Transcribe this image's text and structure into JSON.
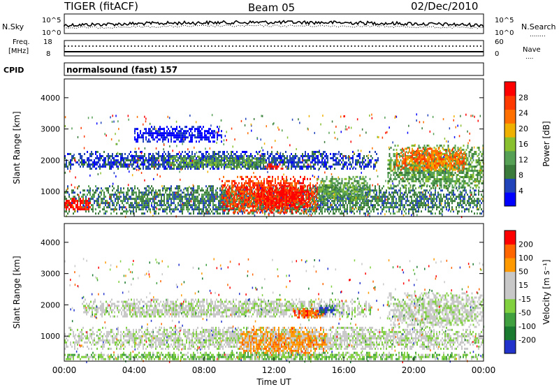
{
  "header": {
    "station": "TIGER (fitACF)",
    "beam": "Beam 05",
    "date": "02/Dec/2010"
  },
  "strips": {
    "nsky_label": "N.Sky",
    "nsearch_label": "N.Search",
    "freq_label": "Freq.",
    "freq_unit": "[MHz]",
    "nave_label": "Nave",
    "cpid_label": "CPID",
    "cpid_text": "normalsound (fast) 157",
    "noise_ticks": [
      "10^5",
      "10^0"
    ],
    "freq_ticks": [
      "18",
      "8"
    ],
    "nave_ticks": [
      "60",
      "0"
    ]
  },
  "colors": {
    "power_scale": [
      "#0000ff",
      "#2244bb",
      "#3a7a3a",
      "#55a055",
      "#88c030",
      "#f0b000",
      "#ff7000",
      "#ff3a00",
      "#ff0000"
    ],
    "velocity_scale": [
      "#2233cc",
      "#1a7a30",
      "#40a040",
      "#80d040",
      "#c8c8c8",
      "#c8c8c8",
      "#ff9900",
      "#ff6600",
      "#ff0000"
    ]
  },
  "chart_data": [
    {
      "type": "heatmap",
      "panel": "power",
      "xlabel": "Time UT",
      "ylabel": "Slant Range [km]",
      "xlim": [
        0,
        24
      ],
      "ylim": [
        200,
        4600
      ],
      "x_ticks": [
        "00:00",
        "04:00",
        "08:00",
        "12:00",
        "16:00",
        "20:00",
        "00:00"
      ],
      "y_ticks": [
        "1000",
        "2000",
        "3000",
        "4000"
      ],
      "colorbar": {
        "label": "Power [dB]",
        "ticks": [
          "28",
          "24",
          "20",
          "16",
          "12",
          "8",
          "4"
        ]
      },
      "echo_regions": [
        {
          "t0": 0.0,
          "t1": 18.0,
          "r0": 1700,
          "r1": 2300,
          "level": 1
        },
        {
          "t0": 6.0,
          "t1": 11.5,
          "r0": 1750,
          "r1": 2150,
          "level": 3
        },
        {
          "t0": 0.0,
          "t1": 24.0,
          "r0": 300,
          "r1": 1200,
          "level": 2
        },
        {
          "t0": 9.0,
          "t1": 14.5,
          "r0": 350,
          "r1": 1500,
          "level": 7
        },
        {
          "t0": 11.0,
          "t1": 14.0,
          "r0": 500,
          "r1": 1200,
          "level": 8
        },
        {
          "t0": 14.5,
          "t1": 17.5,
          "r0": 700,
          "r1": 1500,
          "level": 3
        },
        {
          "t0": 18.5,
          "t1": 24.0,
          "r0": 1100,
          "r1": 2500,
          "level": 3
        },
        {
          "t0": 19.0,
          "t1": 23.0,
          "r0": 1700,
          "r1": 2400,
          "level": 6
        },
        {
          "t0": 0.0,
          "t1": 1.5,
          "r0": 400,
          "r1": 800,
          "level": 8
        },
        {
          "t0": 4.0,
          "t1": 9.0,
          "r0": 2600,
          "r1": 3100,
          "level": 0
        },
        {
          "t0": 11.5,
          "t1": 12.5,
          "r0": 1700,
          "r1": 1900,
          "level": 8
        }
      ]
    },
    {
      "type": "heatmap",
      "panel": "velocity",
      "xlabel": "Time UT",
      "ylabel": "Slant Range [km]",
      "xlim": [
        0,
        24
      ],
      "ylim": [
        200,
        4600
      ],
      "x_ticks": [
        "00:00",
        "04:00",
        "08:00",
        "12:00",
        "16:00",
        "20:00",
        "00:00"
      ],
      "y_ticks": [
        "1000",
        "2000",
        "3000",
        "4000"
      ],
      "colorbar": {
        "label": "Velocity [m s⁻¹]",
        "ticks": [
          "200",
          "100",
          "50",
          "15",
          "-15",
          "-50",
          "-100",
          "-200"
        ]
      },
      "echo_regions": [
        {
          "t0": 1.0,
          "t1": 17.5,
          "r0": 1600,
          "r1": 2200,
          "level": 4
        },
        {
          "t0": 0.0,
          "t1": 24.0,
          "r0": 600,
          "r1": 1300,
          "level": 4
        },
        {
          "t0": 18.5,
          "t1": 24.0,
          "r0": 1300,
          "r1": 2400,
          "level": 4
        },
        {
          "t0": 10.0,
          "t1": 15.0,
          "r0": 300,
          "r1": 1300,
          "level": 6
        },
        {
          "t0": 13.0,
          "t1": 15.0,
          "r0": 1600,
          "r1": 1900,
          "level": 7
        },
        {
          "t0": 0.0,
          "t1": 24.0,
          "r0": 250,
          "r1": 500,
          "level": 3
        },
        {
          "t0": 14.5,
          "t1": 15.5,
          "r0": 1700,
          "r1": 2000,
          "level": 0
        }
      ]
    }
  ]
}
